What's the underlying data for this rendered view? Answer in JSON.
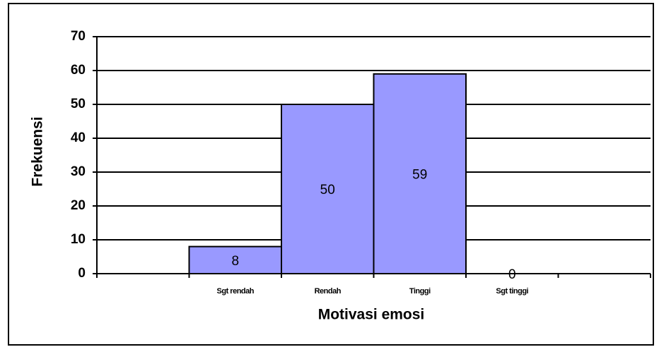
{
  "chart_data": {
    "type": "bar",
    "categories": [
      null,
      "Sgt rendah",
      "Rendah",
      "Tinggi",
      "Sgt tinggi",
      null
    ],
    "values": [
      null,
      8,
      50,
      59,
      0,
      null
    ],
    "color": "#9999ff",
    "xlabel": "Motivasi emosi",
    "ylabel": "Frekuensi",
    "ylim": [
      0,
      70
    ],
    "yticks": [
      0,
      10,
      20,
      30,
      40,
      50,
      60,
      70
    ],
    "grid": true
  }
}
